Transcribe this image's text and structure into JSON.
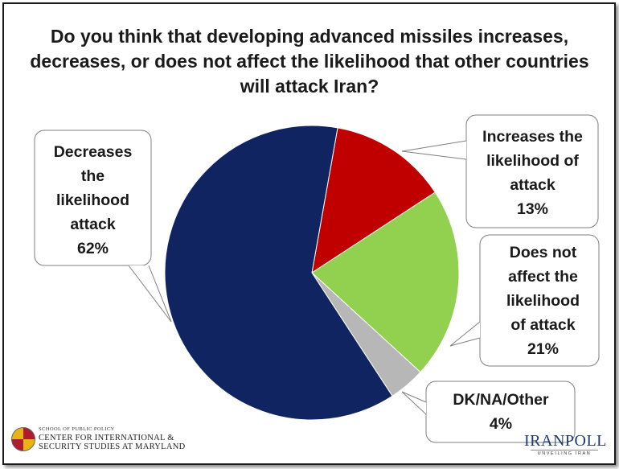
{
  "chart_data": {
    "type": "pie",
    "title": "Do you think that developing advanced missiles increases, decreases, or does not affect the likelihood that other countries will attack Iran?",
    "categories": [
      "Increases the likelihood of attack",
      "Does not affect the likelihood of attack",
      "DK/NA/Other",
      "Decreases the likelihood attack"
    ],
    "values": [
      13,
      21,
      4,
      62
    ],
    "colors": [
      "#c00000",
      "#92d050",
      "#b7b7b7",
      "#0f2460"
    ],
    "labels": {
      "increases": {
        "line1": "Increases the",
        "line2": "likelihood of",
        "line3": "attack",
        "pct": "13%"
      },
      "does_not": {
        "line1": "Does not",
        "line2": "affect the",
        "line3": "likelihood",
        "line4": "of attack",
        "pct": "21%"
      },
      "dk": {
        "line1": "DK/NA/Other",
        "pct": "4%"
      },
      "decreases": {
        "line1": "Decreases",
        "line2": "the",
        "line3": "likelihood",
        "line4": "attack",
        "pct": "62%"
      }
    }
  },
  "footer": {
    "school": "SCHOOL OF PUBLIC POLICY",
    "center_line1": "CENTER FOR INTERNATIONAL &",
    "center_line2": "SECURITY STUDIES AT MARYLAND",
    "brand": "IRANPOLL",
    "brand_sub": "UNVEILING IRAN"
  }
}
